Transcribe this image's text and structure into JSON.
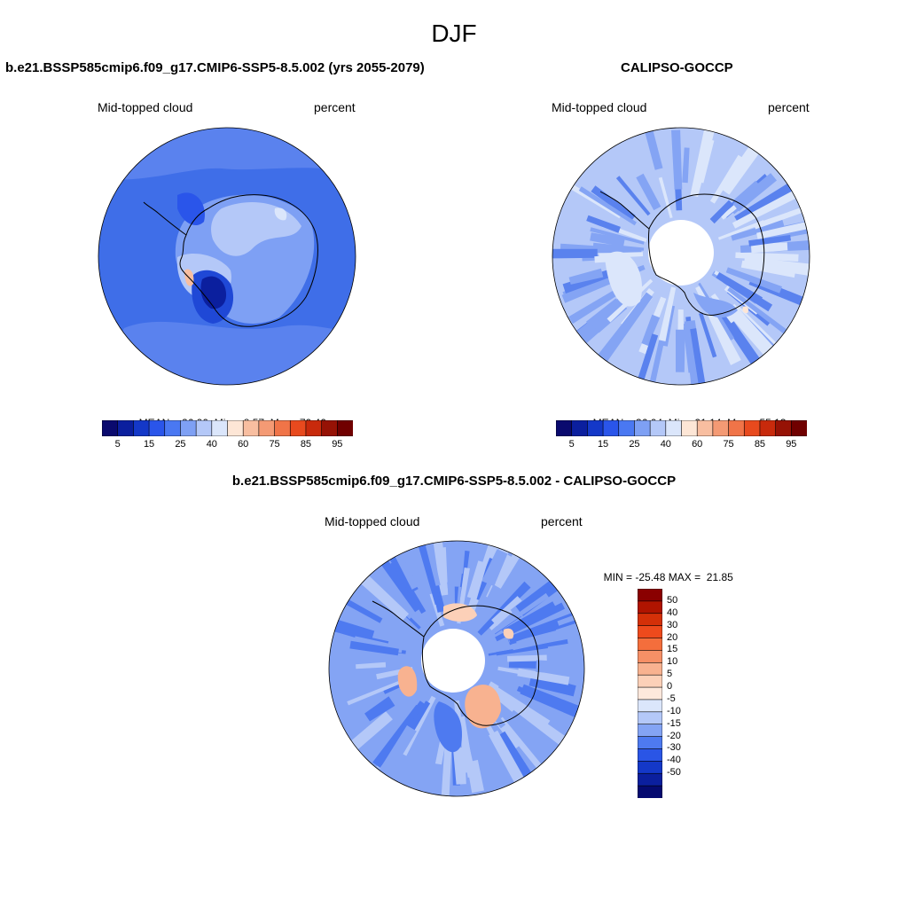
{
  "header": {
    "title": "DJF"
  },
  "panels": {
    "model": {
      "title": "b.e21.BSSP585cmip6.f09_g17.CMIP6-SSP5-8.5.002 (yrs 2055-2079)",
      "left_label": "Mid-topped cloud",
      "right_label": "percent",
      "mean_label": "MEAN=",
      "mean": "26.90",
      "min_label": "Min=",
      "min": "8.57",
      "max_label": "Max=",
      "max": "70.46"
    },
    "obs": {
      "title": "CALIPSO-GOCCP",
      "left_label": "Mid-topped cloud",
      "right_label": "percent",
      "mean_label": "MEAN=",
      "mean": "36.04",
      "min_label": "Min=",
      "min": "21.14",
      "max_label": "Max=",
      "max": "55.13"
    },
    "diff": {
      "title": "b.e21.BSSP585cmip6.f09_g17.CMIP6-SSP5-8.5.002 - CALIPSO-GOCCP",
      "left_label": "Mid-topped cloud",
      "right_label": "percent",
      "min_label": "MIN =",
      "min": "-25.48",
      "max_label": "MAX =",
      "max": "21.85"
    }
  },
  "colorbar_abs": {
    "labels": [
      "5",
      "15",
      "25",
      "40",
      "60",
      "75",
      "85",
      "95"
    ],
    "colors": [
      "#0a0a6e",
      "#0b1f9e",
      "#1438c8",
      "#2a55ea",
      "#4a78f2",
      "#7ea0f4",
      "#b4c8f8",
      "#dbe6fb",
      "#fde6d6",
      "#f8bea0",
      "#f49a74",
      "#f07448",
      "#e84a1e",
      "#c82a0c",
      "#961205",
      "#700000"
    ]
  },
  "colorbar_diff": {
    "labels": [
      "50",
      "40",
      "30",
      "20",
      "15",
      "10",
      "5",
      "0",
      "-5",
      "-10",
      "-15",
      "-20",
      "-30",
      "-40",
      "-50"
    ],
    "colors": [
      "#8a0000",
      "#b01400",
      "#d43008",
      "#ee4a1c",
      "#f46e3c",
      "#f69066",
      "#f8b290",
      "#fcd0b8",
      "#fde8dc",
      "#dbe6fb",
      "#b4c8f8",
      "#84a4f4",
      "#4e7af0",
      "#2a55e6",
      "#1438c8",
      "#0b1f9e",
      "#050a70"
    ]
  },
  "map_colors": {
    "model_base": "#3f6ee8",
    "model_light": "#7ea0f4",
    "model_lighter": "#b4c8f8",
    "model_dark": "#1f48d6",
    "model_darkest": "#0b1f9e",
    "obs_base": "#b4c8f8",
    "obs_light": "#dbe6fb",
    "obs_mid": "#84a4f4",
    "obs_dark": "#5a82ee",
    "diff_base": "#84a4f4",
    "diff_light": "#b4c8f8",
    "diff_dark": "#4e7af0",
    "diff_warm": "#f8b290",
    "diff_warm2": "#f46e3c"
  }
}
